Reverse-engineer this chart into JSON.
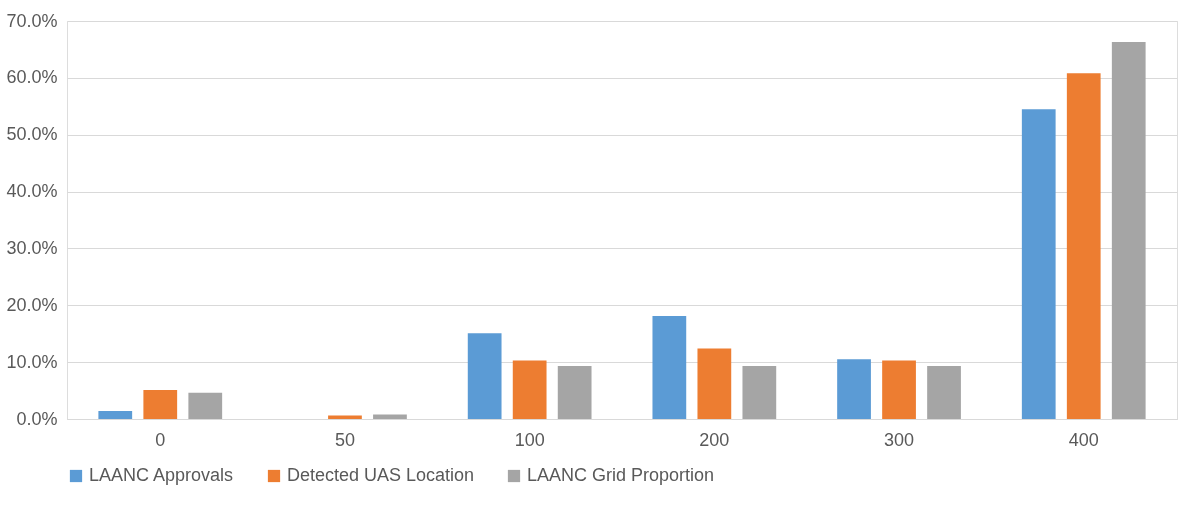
{
  "chart_data": {
    "type": "bar",
    "categories": [
      "0",
      "50",
      "100",
      "200",
      "300",
      "400"
    ],
    "series": [
      {
        "name": "LAANC Approvals",
        "color": "#5b9bd5",
        "values": [
          1.4,
          0,
          15.1,
          18.1,
          10.5,
          54.5
        ]
      },
      {
        "name": "Detected UAS Location",
        "color": "#ed7d31",
        "values": [
          5.1,
          0.6,
          10.3,
          12.4,
          10.3,
          60.8
        ]
      },
      {
        "name": "LAANC Grid Proportion",
        "color": "#a5a5a5",
        "values": [
          4.6,
          0.8,
          9.3,
          9.3,
          9.3,
          66.3
        ]
      }
    ],
    "ylim": [
      0,
      70
    ],
    "yticks": [
      {
        "value": 0,
        "label": "0.0%"
      },
      {
        "value": 10,
        "label": "10.0%"
      },
      {
        "value": 20,
        "label": "20.0%"
      },
      {
        "value": 30,
        "label": "30.0%"
      },
      {
        "value": 40,
        "label": "40.0%"
      },
      {
        "value": 50,
        "label": "50.0%"
      },
      {
        "value": 60,
        "label": "60.0%"
      },
      {
        "value": 70,
        "label": "70.0%"
      }
    ],
    "grid": "y",
    "legend": "bottom"
  }
}
